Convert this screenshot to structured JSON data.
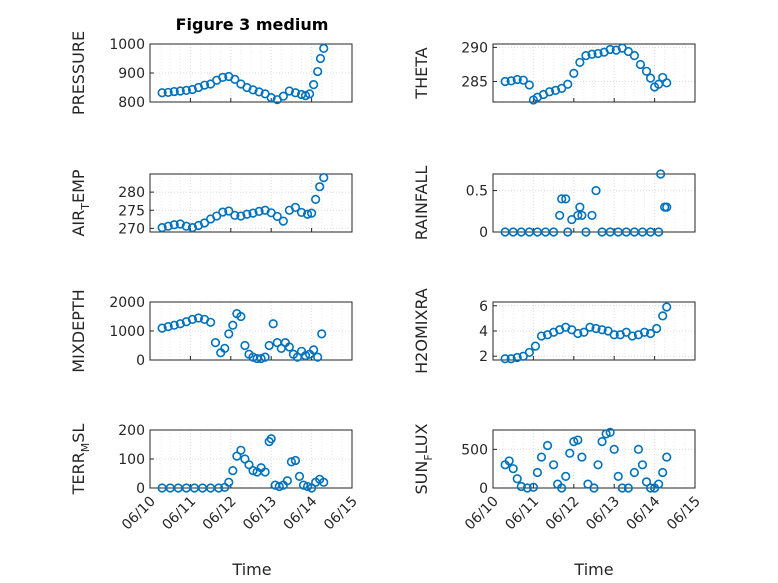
{
  "figure": {
    "title": "Figure 3 medium",
    "xlabel": "Time",
    "marker_color": "#0072bd"
  },
  "chart_data": [
    {
      "type": "scatter",
      "ylabel": "PRESSURE",
      "title": "Figure 3 medium",
      "xlim": [
        "06/10",
        "06/15"
      ],
      "ylim": [
        800,
        1000
      ],
      "yticks": [
        800,
        900,
        1000
      ],
      "xticks": [
        "06/10",
        "06/11",
        "06/12",
        "06/13",
        "06/14",
        "06/15"
      ],
      "grid": true,
      "x": [
        10.3,
        10.45,
        10.6,
        10.75,
        10.9,
        11.05,
        11.2,
        11.35,
        11.5,
        11.65,
        11.8,
        11.95,
        12.1,
        12.25,
        12.4,
        12.55,
        12.7,
        12.85,
        13.0,
        13.15,
        13.3,
        13.45,
        13.6,
        13.75,
        13.85,
        13.95,
        14.05,
        14.15,
        14.22,
        14.3
      ],
      "y": [
        832,
        833,
        836,
        838,
        840,
        843,
        850,
        858,
        862,
        875,
        885,
        888,
        878,
        862,
        850,
        842,
        835,
        828,
        815,
        808,
        820,
        838,
        832,
        826,
        822,
        828,
        860,
        905,
        950,
        985
      ]
    },
    {
      "type": "scatter",
      "ylabel": "THETA",
      "xlim": [
        "06/10",
        "06/15"
      ],
      "ylim": [
        282,
        290.5
      ],
      "yticks": [
        285,
        290
      ],
      "grid": true,
      "x": [
        10.3,
        10.45,
        10.6,
        10.75,
        10.9,
        11.0,
        11.1,
        11.25,
        11.4,
        11.55,
        11.7,
        11.85,
        12.0,
        12.15,
        12.3,
        12.45,
        12.6,
        12.75,
        12.9,
        13.05,
        13.2,
        13.35,
        13.5,
        13.65,
        13.8,
        13.9,
        14.0,
        14.1,
        14.2,
        14.3
      ],
      "y": [
        285,
        285.1,
        285.3,
        285.2,
        284.5,
        282.3,
        282.7,
        283.1,
        283.5,
        283.7,
        284.0,
        284.6,
        286.2,
        287.8,
        288.8,
        289.0,
        289.1,
        289.3,
        289.7,
        289.6,
        289.9,
        289.4,
        288.8,
        287.5,
        286.5,
        285.5,
        284.2,
        284.6,
        285.6,
        284.8
      ]
    },
    {
      "type": "scatter",
      "ylabel": "AIR_T_EMP",
      "xlim": [
        "06/10",
        "06/15"
      ],
      "ylim": [
        269,
        285
      ],
      "yticks": [
        270,
        275,
        280
      ],
      "grid": true,
      "x": [
        10.3,
        10.45,
        10.6,
        10.75,
        10.9,
        11.05,
        11.2,
        11.35,
        11.5,
        11.65,
        11.8,
        11.95,
        12.1,
        12.25,
        12.4,
        12.55,
        12.7,
        12.85,
        13.0,
        13.15,
        13.3,
        13.45,
        13.6,
        13.75,
        13.9,
        14.0,
        14.1,
        14.2,
        14.3
      ],
      "y": [
        270.2,
        270.6,
        271.0,
        271.2,
        270.6,
        270.2,
        270.8,
        271.5,
        272.6,
        273.4,
        274.5,
        274.8,
        273.6,
        273.4,
        273.9,
        274.2,
        274.7,
        275.0,
        274.3,
        273.3,
        272.0,
        275.0,
        275.8,
        274.4,
        273.9,
        274.2,
        278.0,
        281.5,
        284.0
      ]
    },
    {
      "type": "scatter",
      "ylabel": "RAINFALL",
      "xlim": [
        "06/10",
        "06/15"
      ],
      "ylim": [
        0,
        0.7
      ],
      "yticks": [
        0,
        0.5
      ],
      "grid": true,
      "x": [
        10.3,
        10.5,
        10.7,
        10.9,
        11.1,
        11.3,
        11.5,
        11.65,
        11.7,
        11.8,
        11.85,
        11.95,
        12.1,
        12.15,
        12.2,
        12.3,
        12.45,
        12.55,
        12.7,
        12.9,
        13.1,
        13.3,
        13.5,
        13.7,
        13.9,
        14.1,
        14.15,
        14.25,
        14.3
      ],
      "y": [
        0,
        0,
        0,
        0,
        0,
        0,
        0,
        0.2,
        0.4,
        0.4,
        0,
        0.15,
        0.2,
        0.3,
        0.2,
        0,
        0.2,
        0.5,
        0,
        0,
        0,
        0,
        0,
        0,
        0,
        0,
        0.7,
        0.3,
        0.3
      ]
    },
    {
      "type": "scatter",
      "ylabel": "MIXDEPTH",
      "xlim": [
        "06/10",
        "06/15"
      ],
      "ylim": [
        0,
        2000
      ],
      "yticks": [
        0,
        1000,
        2000
      ],
      "grid": true,
      "x": [
        10.3,
        10.45,
        10.6,
        10.75,
        10.9,
        11.05,
        11.2,
        11.35,
        11.5,
        11.62,
        11.75,
        11.85,
        11.95,
        12.05,
        12.15,
        12.25,
        12.35,
        12.45,
        12.55,
        12.65,
        12.75,
        12.85,
        12.95,
        13.05,
        13.15,
        13.25,
        13.35,
        13.45,
        13.55,
        13.65,
        13.75,
        13.85,
        13.95,
        14.05,
        14.15,
        14.25
      ],
      "y": [
        1100,
        1150,
        1200,
        1250,
        1320,
        1400,
        1450,
        1400,
        1300,
        600,
        250,
        400,
        900,
        1200,
        1600,
        1500,
        500,
        200,
        100,
        50,
        50,
        100,
        500,
        1250,
        600,
        400,
        600,
        450,
        200,
        100,
        300,
        150,
        200,
        350,
        100,
        900
      ]
    },
    {
      "type": "scatter",
      "ylabel": "H2OMIXRA",
      "xlim": [
        "06/10",
        "06/15"
      ],
      "ylim": [
        1.7,
        6.3
      ],
      "yticks": [
        2,
        4,
        6
      ],
      "grid": true,
      "x": [
        10.3,
        10.45,
        10.6,
        10.75,
        10.9,
        11.05,
        11.2,
        11.35,
        11.5,
        11.65,
        11.8,
        11.95,
        12.1,
        12.25,
        12.4,
        12.55,
        12.7,
        12.85,
        13.0,
        13.15,
        13.3,
        13.45,
        13.6,
        13.75,
        13.9,
        14.05,
        14.2,
        14.3
      ],
      "y": [
        1.8,
        1.8,
        1.9,
        2.0,
        2.3,
        2.8,
        3.6,
        3.7,
        3.9,
        4.1,
        4.3,
        4.1,
        3.8,
        3.9,
        4.3,
        4.2,
        4.1,
        4.0,
        3.7,
        3.7,
        3.9,
        3.6,
        3.7,
        3.9,
        3.8,
        4.2,
        5.2,
        5.9
      ]
    },
    {
      "type": "scatter",
      "ylabel": "TERR_M_SL",
      "xlim": [
        "06/10",
        "06/15"
      ],
      "ylim": [
        0,
        200
      ],
      "yticks": [
        0,
        100,
        200
      ],
      "grid": true,
      "x": [
        10.3,
        10.5,
        10.7,
        10.9,
        11.1,
        11.3,
        11.5,
        11.7,
        11.85,
        11.95,
        12.05,
        12.15,
        12.25,
        12.35,
        12.45,
        12.55,
        12.65,
        12.75,
        12.85,
        12.95,
        13.0,
        13.1,
        13.2,
        13.3,
        13.4,
        13.5,
        13.6,
        13.7,
        13.8,
        13.9,
        14.0,
        14.1,
        14.2,
        14.3
      ],
      "y": [
        0,
        0,
        0,
        0,
        0,
        0,
        0,
        0,
        2,
        20,
        60,
        110,
        130,
        100,
        80,
        60,
        55,
        70,
        55,
        160,
        170,
        10,
        5,
        10,
        25,
        90,
        95,
        40,
        10,
        5,
        0,
        20,
        30,
        20
      ]
    },
    {
      "type": "scatter",
      "ylabel": "SUN_F_LUX",
      "xlim": [
        "06/10",
        "06/15"
      ],
      "ylim": [
        0,
        750
      ],
      "yticks": [
        0,
        500
      ],
      "grid": true,
      "x": [
        10.3,
        10.4,
        10.5,
        10.6,
        10.7,
        10.85,
        11.0,
        11.1,
        11.2,
        11.35,
        11.5,
        11.6,
        11.7,
        11.8,
        11.9,
        12.0,
        12.1,
        12.2,
        12.35,
        12.5,
        12.6,
        12.7,
        12.8,
        12.9,
        13.0,
        13.1,
        13.2,
        13.35,
        13.5,
        13.6,
        13.7,
        13.8,
        13.9,
        14.0,
        14.1,
        14.2,
        14.3
      ],
      "y": [
        300,
        350,
        250,
        120,
        20,
        0,
        10,
        200,
        400,
        550,
        300,
        50,
        0,
        150,
        450,
        600,
        620,
        400,
        50,
        0,
        300,
        600,
        700,
        720,
        500,
        150,
        0,
        0,
        200,
        500,
        300,
        80,
        0,
        0,
        50,
        200,
        400
      ]
    }
  ]
}
